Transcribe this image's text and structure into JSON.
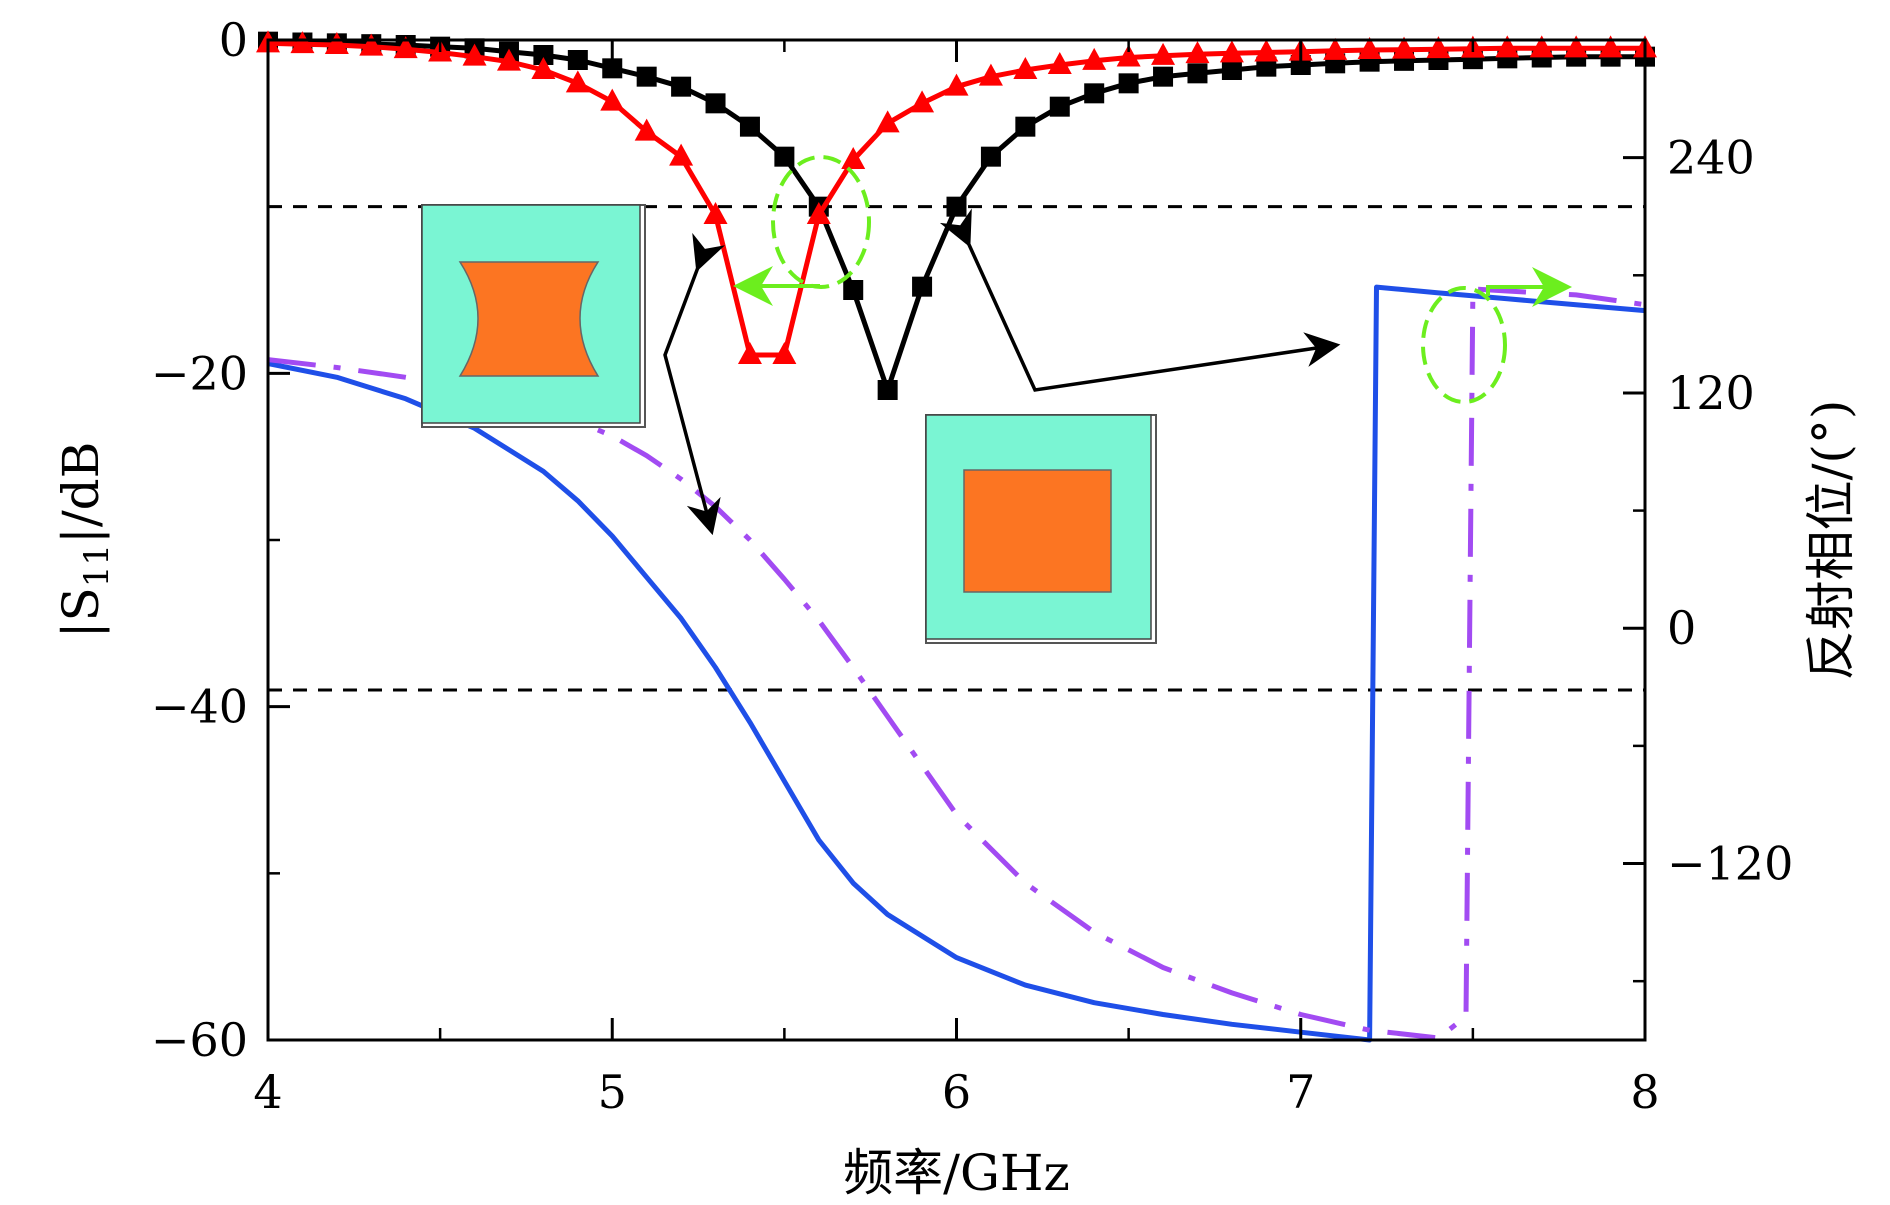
{
  "chart_data": {
    "type": "line",
    "title": "",
    "xlabel": "频率/GHz",
    "ylabel_left_parts": [
      "|S",
      "11",
      "|/dB"
    ],
    "ylabel_right": "反射相位/(°)",
    "xlim": [
      4,
      8
    ],
    "ylim_left": [
      -60,
      0
    ],
    "ylim_right": [
      -210,
      300
    ],
    "x_ticks": [
      "4",
      "5",
      "6",
      "7",
      "8"
    ],
    "y_left_ticks": [
      {
        "value": 0,
        "label": "0"
      },
      {
        "value": -20,
        "label": "−20"
      },
      {
        "value": -40,
        "label": "−40"
      },
      {
        "value": -60,
        "label": "−60"
      }
    ],
    "y_right_ticks": [
      {
        "value": 240,
        "label": "240"
      },
      {
        "value": 120,
        "label": "120"
      },
      {
        "value": 0,
        "label": "0"
      },
      {
        "value": -120,
        "label": "−120"
      }
    ],
    "reference_lines_dB": [
      -10,
      -39
    ],
    "series": [
      {
        "color": "#000000",
        "axis": "left",
        "marker": "square",
        "style": "solid",
        "x": [
          4.0,
          4.1,
          4.2,
          4.3,
          4.4,
          4.5,
          4.6,
          4.7,
          4.8,
          4.9,
          5.0,
          5.1,
          5.2,
          5.3,
          5.4,
          5.5,
          5.6,
          5.7,
          5.8,
          5.9,
          6.0,
          6.1,
          6.2,
          6.3,
          6.4,
          6.5,
          6.6,
          6.7,
          6.8,
          6.9,
          7.0,
          7.1,
          7.2,
          7.3,
          7.4,
          7.5,
          7.6,
          7.7,
          7.8,
          7.9,
          8.0
        ],
        "y": [
          -0.1,
          -0.15,
          -0.2,
          -0.25,
          -0.3,
          -0.4,
          -0.5,
          -0.7,
          -0.9,
          -1.2,
          -1.7,
          -2.2,
          -2.8,
          -3.8,
          -5.2,
          -7.0,
          -10.0,
          -15.0,
          -21.0,
          -14.8,
          -10.0,
          -7.0,
          -5.2,
          -4.0,
          -3.2,
          -2.6,
          -2.2,
          -2.0,
          -1.8,
          -1.6,
          -1.5,
          -1.4,
          -1.3,
          -1.25,
          -1.2,
          -1.15,
          -1.1,
          -1.05,
          -1.0,
          -1.0,
          -1.0
        ]
      },
      {
        "color": "#ff0000",
        "axis": "left",
        "marker": "triangle",
        "style": "solid",
        "x": [
          4.0,
          4.1,
          4.2,
          4.3,
          4.4,
          4.5,
          4.6,
          4.7,
          4.8,
          4.9,
          5.0,
          5.1,
          5.2,
          5.3,
          5.4,
          5.5,
          5.6,
          5.7,
          5.8,
          5.9,
          6.0,
          6.1,
          6.2,
          6.3,
          6.4,
          6.5,
          6.6,
          6.7,
          6.8,
          6.9,
          7.0,
          7.1,
          7.2,
          7.3,
          7.4,
          7.5,
          7.6,
          7.7,
          7.8,
          7.9,
          8.0
        ],
        "y": [
          -0.2,
          -0.25,
          -0.3,
          -0.4,
          -0.55,
          -0.75,
          -1.0,
          -1.3,
          -1.8,
          -2.6,
          -3.7,
          -5.5,
          -7.0,
          -10.5,
          -18.9,
          -18.9,
          -10.5,
          -7.2,
          -5.0,
          -3.8,
          -2.8,
          -2.2,
          -1.8,
          -1.5,
          -1.25,
          -1.05,
          -0.95,
          -0.85,
          -0.8,
          -0.75,
          -0.7,
          -0.65,
          -0.6,
          -0.58,
          -0.55,
          -0.52,
          -0.5,
          -0.5,
          -0.5,
          -0.5,
          -0.5
        ]
      },
      {
        "color": "#1f4fe8",
        "axis": "right",
        "marker": "none",
        "style": "solid",
        "x": [
          4.0,
          4.2,
          4.4,
          4.6,
          4.8,
          4.9,
          5.0,
          5.1,
          5.2,
          5.3,
          5.4,
          5.5,
          5.6,
          5.7,
          5.8,
          6.0,
          6.2,
          6.4,
          6.6,
          6.8,
          7.0,
          7.2,
          7.22,
          7.4,
          7.6,
          7.8,
          8.0
        ],
        "y": [
          135,
          128,
          117,
          102,
          80,
          65,
          47,
          26,
          5,
          -20,
          -48,
          -78,
          -108,
          -130,
          -146,
          -168,
          -182,
          -191,
          -197,
          -202,
          -206,
          -210,
          174,
          171,
          168,
          165,
          162
        ]
      },
      {
        "color": "#a24bf2",
        "axis": "right",
        "marker": "none",
        "style": "dashdot",
        "x": [
          4.0,
          4.2,
          4.4,
          4.6,
          4.8,
          5.0,
          5.1,
          5.2,
          5.3,
          5.4,
          5.5,
          5.6,
          5.7,
          5.8,
          6.0,
          6.2,
          6.4,
          6.6,
          6.8,
          7.0,
          7.2,
          7.4,
          7.48,
          7.5,
          7.6,
          7.8,
          8.0
        ],
        "y": [
          137,
          133,
          128,
          122,
          113,
          98,
          88,
          76,
          62,
          45,
          25,
          4,
          -20,
          -45,
          -95,
          -130,
          -155,
          -173,
          -186,
          -197,
          -205,
          -209,
          -198,
          173,
          172,
          170,
          165
        ]
      }
    ]
  }
}
